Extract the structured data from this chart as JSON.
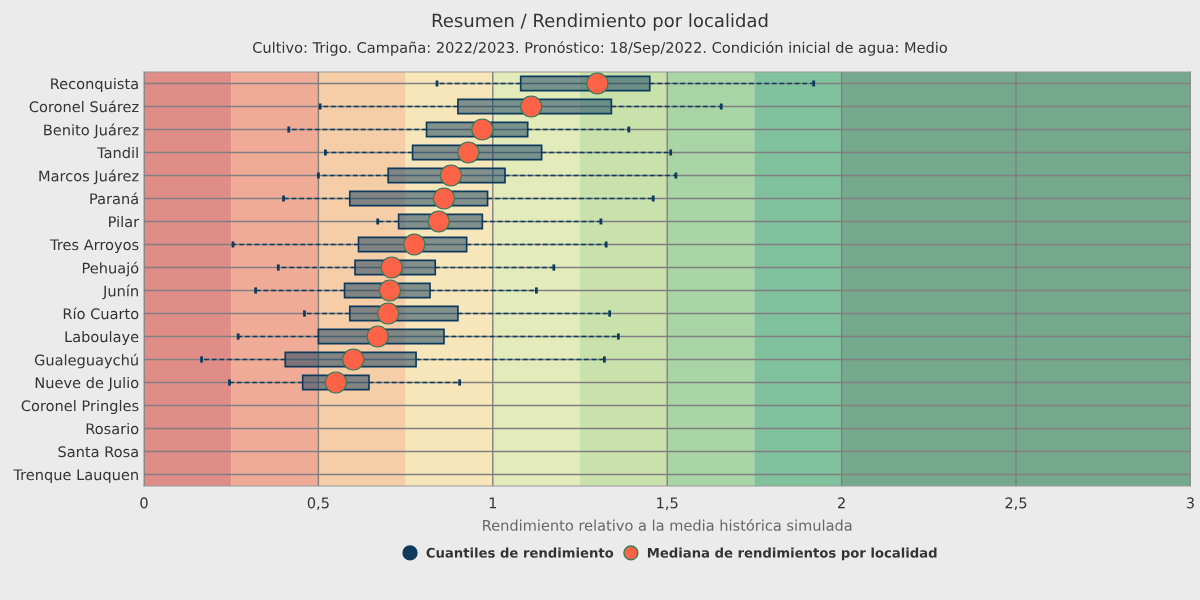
{
  "chart_data": {
    "type": "box",
    "orientation": "horizontal",
    "title": "Resumen / Rendimiento por localidad",
    "subtitle": "Cultivo: Trigo. Campaña: 2022/2023. Pronóstico: 18/Sep/2022. Condición inicial de agua: Medio",
    "xlabel": "Rendimiento relativo a la media histórica simulada",
    "categories": [
      "Reconquista",
      "Coronel Suárez",
      "Benito Juárez",
      "Tandil",
      "Marcos Juárez",
      "Paraná",
      "Pilar",
      "Tres Arroyos",
      "Pehuajó",
      "Junín",
      "Río Cuarto",
      "Laboulaye",
      "Gualeguaychú",
      "Nueve de Julio",
      "Coronel Pringles",
      "Rosario",
      "Santa Rosa",
      "Trenque Lauquen"
    ],
    "xlim": [
      0,
      3
    ],
    "xticks": [
      0,
      {
        "value": 0.5,
        "label": "0,5"
      },
      1,
      {
        "value": 1.5,
        "label": "1,5"
      },
      2,
      {
        "value": 2.5,
        "label": "2,5"
      },
      3
    ],
    "grid": true,
    "legend": "bottom",
    "bands": [
      {
        "axis": "x",
        "from": 0,
        "to": 0.25,
        "color": "#e08c87"
      },
      {
        "axis": "x",
        "from": 0.25,
        "to": 0.5,
        "color": "#f0ab97"
      },
      {
        "axis": "x",
        "from": 0.5,
        "to": 0.75,
        "color": "#f5cda7"
      },
      {
        "axis": "x",
        "from": 0.75,
        "to": 1,
        "color": "#f6e6b9"
      },
      {
        "axis": "x",
        "from": 1,
        "to": 1.25,
        "color": "#e3ebbb"
      },
      {
        "axis": "x",
        "from": 1.25,
        "to": 1.5,
        "color": "#c9e1aa"
      },
      {
        "axis": "x",
        "from": 1.5,
        "to": 1.75,
        "color": "#a8d4a6"
      },
      {
        "axis": "x",
        "from": 1.75,
        "to": 2,
        "color": "#81c29e"
      },
      {
        "axis": "x",
        "from": 2,
        "to": 3,
        "color": "#74a98e"
      }
    ],
    "series": [
      {
        "name": "Cuantiles de rendimiento",
        "color": "#0d3b5e",
        "boxes": [
          {
            "low": 0.84,
            "q1": 1.08,
            "median": 1.3,
            "q3": 1.45,
            "high": 1.92
          },
          {
            "low": 0.505,
            "q1": 0.9,
            "median": 1.11,
            "q3": 1.34,
            "high": 1.655
          },
          {
            "low": 0.415,
            "q1": 0.81,
            "median": 0.97,
            "q3": 1.1,
            "high": 1.39
          },
          {
            "low": 0.52,
            "q1": 0.77,
            "median": 0.93,
            "q3": 1.14,
            "high": 1.51
          },
          {
            "low": 0.5,
            "q1": 0.7,
            "median": 0.88,
            "q3": 1.035,
            "high": 1.525
          },
          {
            "low": 0.4,
            "q1": 0.59,
            "median": 0.86,
            "q3": 0.985,
            "high": 1.46
          },
          {
            "low": 0.67,
            "q1": 0.73,
            "median": 0.845,
            "q3": 0.97,
            "high": 1.31
          },
          {
            "low": 0.255,
            "q1": 0.615,
            "median": 0.775,
            "q3": 0.925,
            "high": 1.325
          },
          {
            "low": 0.385,
            "q1": 0.605,
            "median": 0.71,
            "q3": 0.835,
            "high": 1.175
          },
          {
            "low": 0.32,
            "q1": 0.575,
            "median": 0.705,
            "q3": 0.82,
            "high": 1.125
          },
          {
            "low": 0.46,
            "q1": 0.59,
            "median": 0.7,
            "q3": 0.9,
            "high": 1.335
          },
          {
            "low": 0.27,
            "q1": 0.5,
            "median": 0.67,
            "q3": 0.86,
            "high": 1.36
          },
          {
            "low": 0.165,
            "q1": 0.405,
            "median": 0.6,
            "q3": 0.78,
            "high": 1.32
          },
          {
            "low": 0.245,
            "q1": 0.455,
            "median": 0.55,
            "q3": 0.645,
            "high": 0.905
          },
          null,
          null,
          null,
          null
        ]
      },
      {
        "name": "Mediana de rendimientos por localidad",
        "type": "scatter",
        "color": "#ff6347",
        "marker": "circle",
        "values": [
          1.3,
          1.11,
          0.97,
          0.93,
          0.88,
          0.86,
          0.845,
          0.775,
          0.71,
          0.705,
          0.7,
          0.67,
          0.6,
          0.55,
          null,
          null,
          null,
          null
        ]
      }
    ]
  }
}
